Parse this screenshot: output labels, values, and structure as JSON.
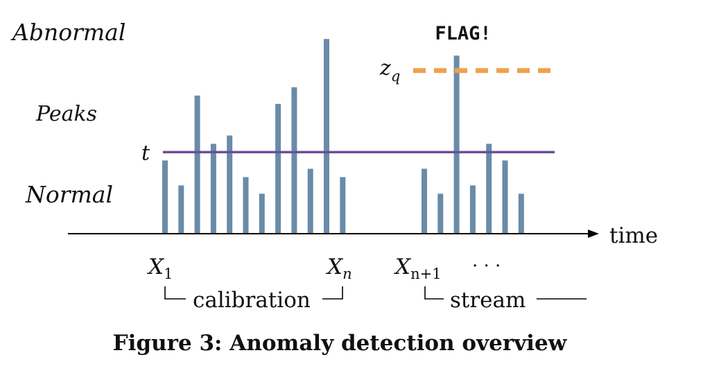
{
  "colors": {
    "bar": "#6a8ba8",
    "threshold": "#6a4f98",
    "quantile": "#f0a14a",
    "axis": "#000000",
    "text": "#111111"
  },
  "regions": {
    "abnormal": "Abnormal",
    "peaks": "Peaks",
    "normal": "Normal"
  },
  "labels": {
    "flag": "FLAG!",
    "t": "t",
    "zq_main": "z",
    "zq_sub": "q",
    "time": "time",
    "x1_main": "X",
    "x1_sub": "1",
    "xn_main": "X",
    "xn_sub": "n",
    "xn1_main": "X",
    "xn1_sub": "n+1",
    "ellipsis": "· · ·",
    "calibration": "calibration",
    "stream": "stream"
  },
  "caption": "Figure 3: Anomaly detection overview",
  "bars": {
    "calibration": [
      0.44,
      0.29,
      0.83,
      0.54,
      0.59,
      0.34,
      0.24,
      0.78,
      0.88,
      0.39,
      1.17,
      0.34
    ],
    "stream": [
      0.39,
      0.24,
      1.07,
      0.29,
      0.54,
      0.44,
      0.24
    ]
  },
  "threshold_t": 0.49,
  "quantile_zq": 0.98,
  "flag_stream_index": 2
}
